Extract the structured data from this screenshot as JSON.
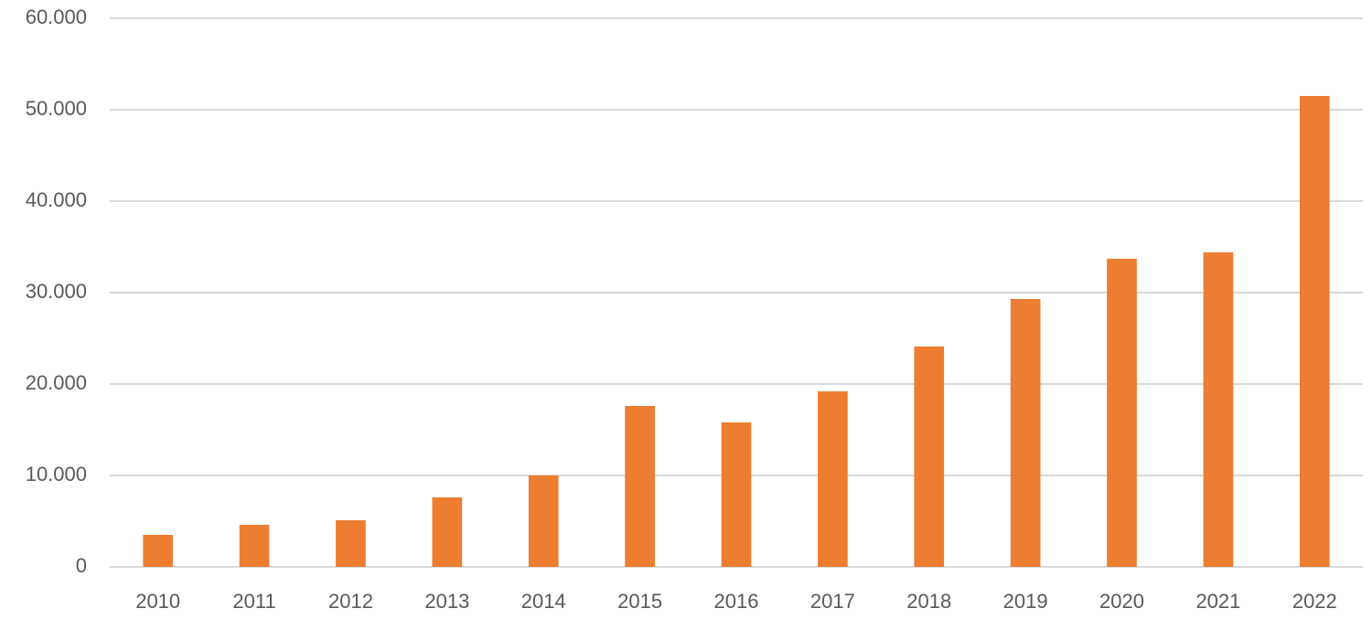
{
  "chart_data": {
    "type": "bar",
    "categories": [
      "2010",
      "2011",
      "2012",
      "2013",
      "2014",
      "2015",
      "2016",
      "2017",
      "2018",
      "2019",
      "2020",
      "2021",
      "2022"
    ],
    "values": [
      3500,
      4600,
      5100,
      7600,
      10000,
      17600,
      15800,
      19200,
      24100,
      29300,
      33700,
      34400,
      51500
    ],
    "color": "#ed7d31",
    "ylim": [
      0,
      60000
    ],
    "yticks": [
      0,
      {
        "value": 10000,
        "label": "10.000"
      },
      {
        "value": 20000,
        "label": "20.000"
      },
      {
        "value": 30000,
        "label": "30.000"
      },
      {
        "value": 40000,
        "label": "40.000"
      },
      {
        "value": 50000,
        "label": "50.000"
      },
      {
        "value": 60000,
        "label": "60.000"
      }
    ],
    "grid": true
  }
}
